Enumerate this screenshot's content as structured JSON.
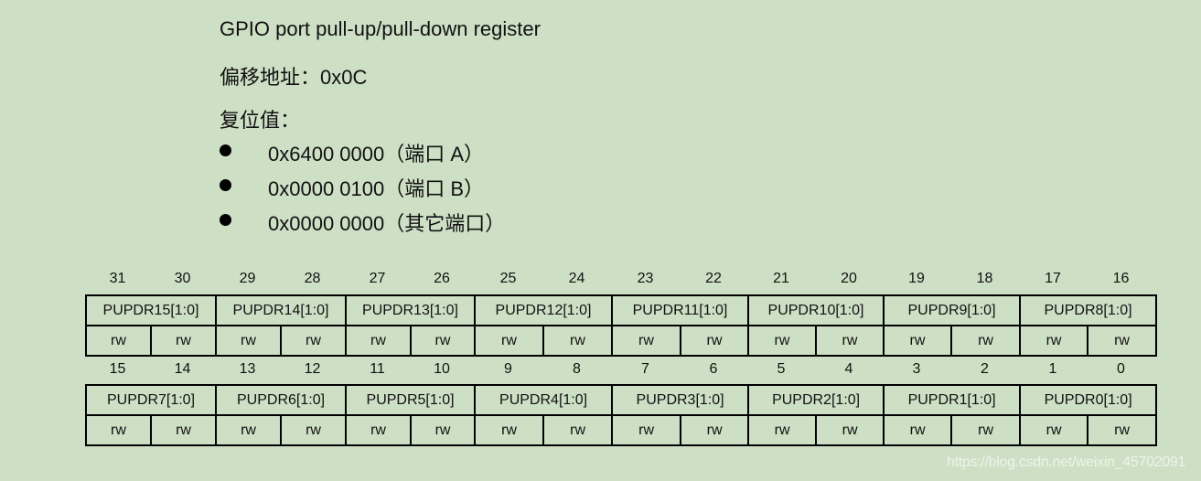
{
  "title": "GPIO port pull-up/pull-down register",
  "offset": "偏移地址：0x0C",
  "reset_label": "复位值：",
  "reset_values": [
    "0x6400 0000（端口 A）",
    "0x0000 0100（端口 B）",
    "0x0000 0000（其它端口）"
  ],
  "register_rows": [
    {
      "bits": [
        "31",
        "30",
        "29",
        "28",
        "27",
        "26",
        "25",
        "24",
        "23",
        "22",
        "21",
        "20",
        "19",
        "18",
        "17",
        "16"
      ],
      "fields": [
        "PUPDR15[1:0]",
        "PUPDR14[1:0]",
        "PUPDR13[1:0]",
        "PUPDR12[1:0]",
        "PUPDR11[1:0]",
        "PUPDR10[1:0]",
        "PUPDR9[1:0]",
        "PUPDR8[1:0]"
      ],
      "access": [
        "rw",
        "rw",
        "rw",
        "rw",
        "rw",
        "rw",
        "rw",
        "rw",
        "rw",
        "rw",
        "rw",
        "rw",
        "rw",
        "rw",
        "rw",
        "rw"
      ]
    },
    {
      "bits": [
        "15",
        "14",
        "13",
        "12",
        "11",
        "10",
        "9",
        "8",
        "7",
        "6",
        "5",
        "4",
        "3",
        "2",
        "1",
        "0"
      ],
      "fields": [
        "PUPDR7[1:0]",
        "PUPDR6[1:0]",
        "PUPDR5[1:0]",
        "PUPDR4[1:0]",
        "PUPDR3[1:0]",
        "PUPDR2[1:0]",
        "PUPDR1[1:0]",
        "PUPDR0[1:0]"
      ],
      "access": [
        "rw",
        "rw",
        "rw",
        "rw",
        "rw",
        "rw",
        "rw",
        "rw",
        "rw",
        "rw",
        "rw",
        "rw",
        "rw",
        "rw",
        "rw",
        "rw"
      ]
    }
  ],
  "watermark": "https://blog.csdn.net/weixin_45702091"
}
